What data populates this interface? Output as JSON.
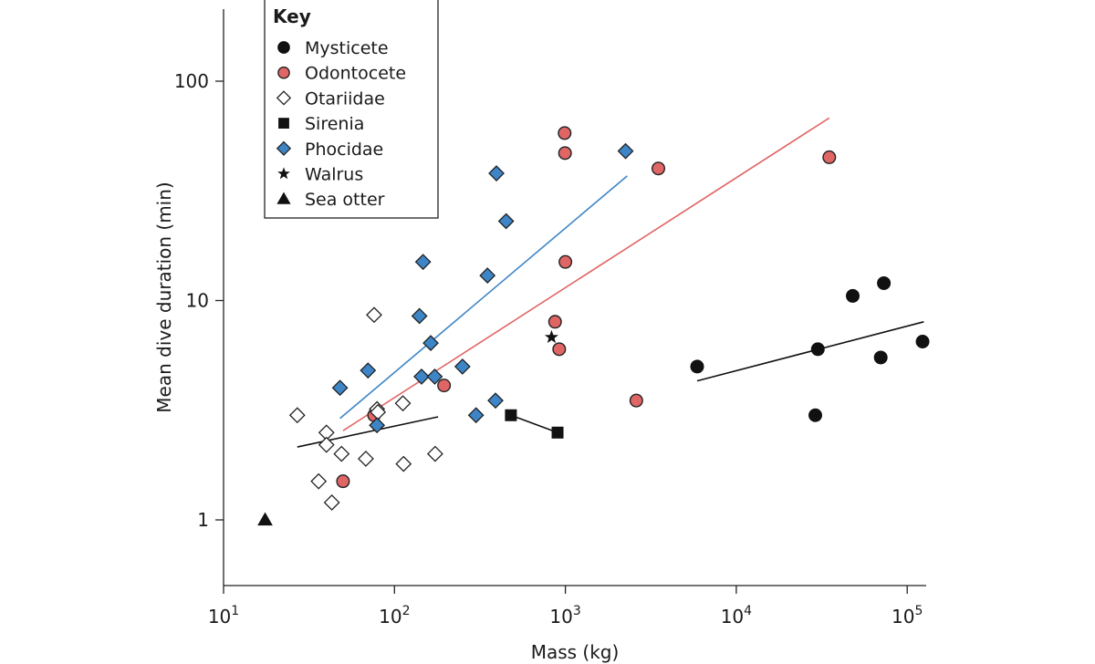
{
  "chart_data": {
    "type": "scatter",
    "xscale": "log",
    "yscale": "log",
    "xlabel": "Mass (kg)",
    "ylabel": "Mean dive duration (min)",
    "xlim": [
      10,
      130000
    ],
    "ylim": [
      0.5,
      200
    ],
    "x_ticks": [
      {
        "value": 10,
        "base": "10",
        "exp": "1"
      },
      {
        "value": 100,
        "base": "10",
        "exp": "2"
      },
      {
        "value": 1000,
        "base": "10",
        "exp": "3"
      },
      {
        "value": 10000,
        "base": "10",
        "exp": "4"
      },
      {
        "value": 100000,
        "base": "10",
        "exp": "5"
      }
    ],
    "y_ticks": [
      {
        "value": 1,
        "label": "1"
      },
      {
        "value": 10,
        "label": "10"
      },
      {
        "value": 100,
        "label": "100"
      }
    ],
    "key_title": "Key",
    "series": [
      {
        "name": "Mysticete",
        "marker": "circle",
        "fill": "#111111",
        "stroke": "#111111",
        "points": [
          [
            5900,
            5.0
          ],
          [
            29000,
            3.0
          ],
          [
            30000,
            6.0
          ],
          [
            48000,
            10.5
          ],
          [
            70000,
            5.5
          ],
          [
            73000,
            12.0
          ],
          [
            123000,
            6.5
          ]
        ]
      },
      {
        "name": "Odontocete",
        "marker": "circle",
        "fill": "#e06666",
        "stroke": "#222222",
        "points": [
          [
            50,
            1.5
          ],
          [
            76,
            3.0
          ],
          [
            195,
            4.1
          ],
          [
            870,
            8.0
          ],
          [
            920,
            6.0
          ],
          [
            990,
            58
          ],
          [
            995,
            47
          ],
          [
            1000,
            15
          ],
          [
            2600,
            3.5
          ],
          [
            3500,
            40
          ],
          [
            35000,
            45
          ]
        ]
      },
      {
        "name": "Otariidae",
        "marker": "diamond",
        "fill": "#ffffff",
        "stroke": "#222222",
        "points": [
          [
            27,
            3.0
          ],
          [
            36,
            1.5
          ],
          [
            40,
            2.5
          ],
          [
            40,
            2.2
          ],
          [
            43,
            1.2
          ],
          [
            49,
            2.0
          ],
          [
            68,
            1.9
          ],
          [
            76,
            8.6
          ],
          [
            79,
            3.2
          ],
          [
            80,
            3.1
          ],
          [
            112,
            3.4
          ],
          [
            113,
            1.8
          ],
          [
            173,
            2.0
          ]
        ]
      },
      {
        "name": "Sirenia",
        "marker": "square",
        "fill": "#111111",
        "stroke": "#111111",
        "points": [
          [
            480,
            3.0
          ],
          [
            900,
            2.5
          ]
        ]
      },
      {
        "name": "Phocidae",
        "marker": "diamond",
        "fill": "#3d85c6",
        "stroke": "#222222",
        "points": [
          [
            48,
            4.0
          ],
          [
            70,
            4.8
          ],
          [
            79,
            2.7
          ],
          [
            140,
            8.5
          ],
          [
            144,
            4.5
          ],
          [
            147,
            15
          ],
          [
            163,
            6.4
          ],
          [
            172,
            4.5
          ],
          [
            250,
            5.0
          ],
          [
            300,
            3.0
          ],
          [
            350,
            13
          ],
          [
            390,
            3.5
          ],
          [
            395,
            38
          ],
          [
            450,
            23
          ],
          [
            2250,
            48
          ]
        ]
      },
      {
        "name": "Walrus",
        "marker": "star",
        "fill": "#111111",
        "stroke": "#111111",
        "points": [
          [
            830,
            6.8
          ]
        ]
      },
      {
        "name": "Sea otter",
        "marker": "triangle",
        "fill": "#111111",
        "stroke": "#111111",
        "points": [
          [
            17.5,
            1.0
          ]
        ]
      }
    ],
    "fit_lines": [
      {
        "series": "Otariidae",
        "color": "#111111",
        "from": [
          27,
          2.15
        ],
        "to": [
          180,
          2.95
        ]
      },
      {
        "series": "Phocidae",
        "color": "#3d85c6",
        "from": [
          48,
          2.9
        ],
        "to": [
          2300,
          37
        ]
      },
      {
        "series": "Odontocete",
        "color": "#e06666",
        "from": [
          50,
          2.55
        ],
        "to": [
          35000,
          68
        ]
      },
      {
        "series": "Mysticete",
        "color": "#111111",
        "from": [
          5900,
          4.3
        ],
        "to": [
          125000,
          8.0
        ]
      },
      {
        "series": "Sirenia",
        "color": "#111111",
        "from": [
          480,
          3.0
        ],
        "to": [
          900,
          2.5
        ]
      }
    ]
  }
}
